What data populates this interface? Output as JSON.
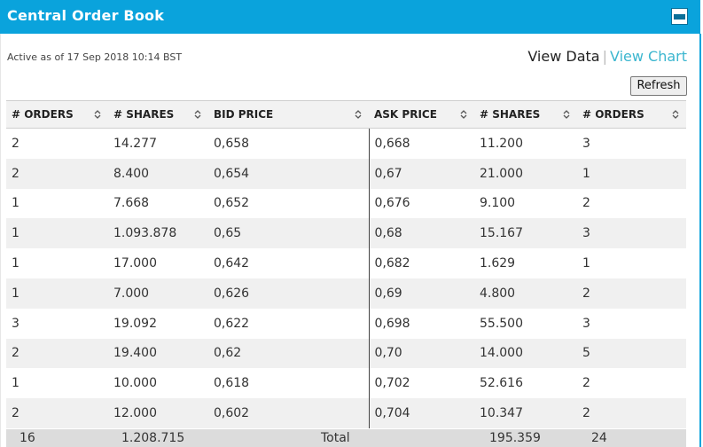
{
  "panel": {
    "title": "Central Order Book"
  },
  "status": {
    "active_as_of": "Active as of 17 Sep 2018 10:14 BST"
  },
  "view_links": {
    "data": "View Data",
    "separator": "|",
    "chart": "View Chart"
  },
  "toolbar": {
    "refresh_label": "Refresh"
  },
  "table": {
    "headers": [
      "# ORDERS",
      "# SHARES",
      "BID PRICE",
      "ASK PRICE",
      "# SHARES",
      "# ORDERS"
    ],
    "rows": [
      [
        "2",
        "14.277",
        "0,658",
        "0,668",
        "11.200",
        "3"
      ],
      [
        "2",
        "8.400",
        "0,654",
        "0,67",
        "21.000",
        "1"
      ],
      [
        "1",
        "7.668",
        "0,652",
        "0,676",
        "9.100",
        "2"
      ],
      [
        "1",
        "1.093.878",
        "0,65",
        "0,68",
        "15.167",
        "3"
      ],
      [
        "1",
        "17.000",
        "0,642",
        "0,682",
        "1.629",
        "1"
      ],
      [
        "1",
        "7.000",
        "0,626",
        "0,69",
        "4.800",
        "2"
      ],
      [
        "3",
        "19.092",
        "0,622",
        "0,698",
        "55.500",
        "3"
      ],
      [
        "2",
        "19.400",
        "0,62",
        "0,70",
        "14.000",
        "5"
      ],
      [
        "1",
        "10.000",
        "0,618",
        "0,702",
        "52.616",
        "2"
      ],
      [
        "2",
        "12.000",
        "0,602",
        "0,704",
        "10.347",
        "2"
      ]
    ],
    "totals": {
      "bid_orders": "16",
      "bid_shares": "1.208.715",
      "label": "Total",
      "ask_shares": "195.359",
      "ask_orders": "24"
    }
  },
  "icons": {
    "collapse": "minus-square-icon",
    "sort": "sort-arrows-icon"
  },
  "colors": {
    "header_bar": "#0aa3dc",
    "link": "#3bb6cf"
  }
}
